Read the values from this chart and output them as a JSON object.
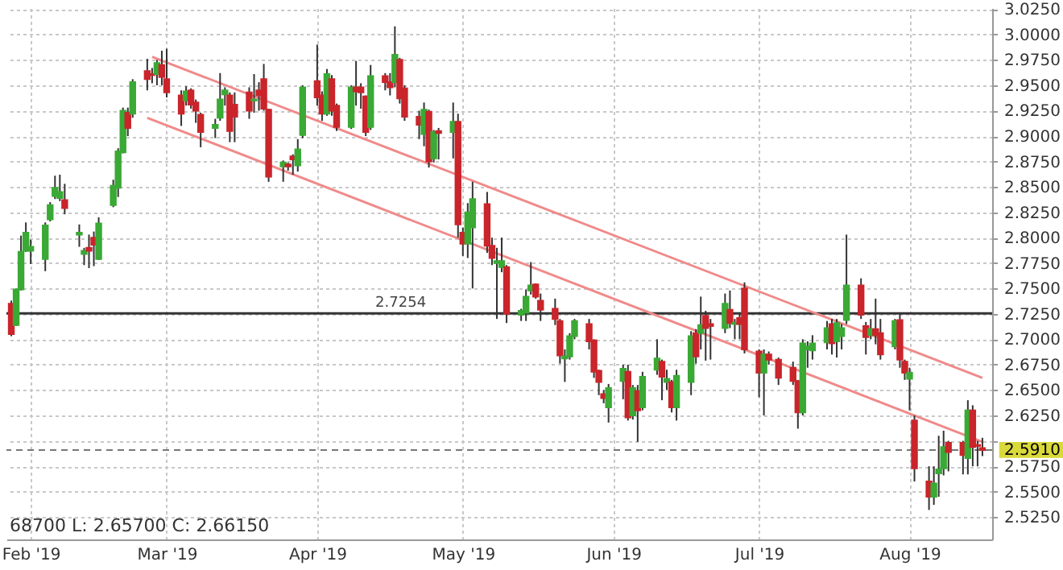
{
  "chart_data": {
    "type": "candlestick",
    "x": [
      "2019-01-28",
      "2019-01-29",
      "2019-01-30",
      "2019-01-31",
      "2019-02-01",
      "2019-02-04",
      "2019-02-05",
      "2019-02-06",
      "2019-02-07",
      "2019-02-08",
      "2019-02-11",
      "2019-02-12",
      "2019-02-13",
      "2019-02-14",
      "2019-02-15",
      "2019-02-18",
      "2019-02-19",
      "2019-02-20",
      "2019-02-21",
      "2019-02-22",
      "2019-02-25",
      "2019-02-26",
      "2019-02-27",
      "2019-02-28",
      "2019-03-01",
      "2019-03-04",
      "2019-03-05",
      "2019-03-06",
      "2019-03-07",
      "2019-03-08",
      "2019-03-11",
      "2019-03-12",
      "2019-03-13",
      "2019-03-14",
      "2019-03-15",
      "2019-03-18",
      "2019-03-19",
      "2019-03-20",
      "2019-03-21",
      "2019-03-22",
      "2019-03-25",
      "2019-03-26",
      "2019-03-27",
      "2019-03-28",
      "2019-03-29",
      "2019-04-01",
      "2019-04-02",
      "2019-04-03",
      "2019-04-04",
      "2019-04-05",
      "2019-04-08",
      "2019-04-09",
      "2019-04-10",
      "2019-04-11",
      "2019-04-12",
      "2019-04-15",
      "2019-04-16",
      "2019-04-17",
      "2019-04-18",
      "2019-04-19",
      "2019-04-22",
      "2019-04-23",
      "2019-04-24",
      "2019-04-25",
      "2019-04-26",
      "2019-04-29",
      "2019-04-30",
      "2019-05-01",
      "2019-05-02",
      "2019-05-03",
      "2019-05-06",
      "2019-05-07",
      "2019-05-08",
      "2019-05-09",
      "2019-05-10",
      "2019-05-13",
      "2019-05-14",
      "2019-05-15",
      "2019-05-16",
      "2019-05-17",
      "2019-05-20",
      "2019-05-21",
      "2019-05-22",
      "2019-05-23",
      "2019-05-24",
      "2019-05-27",
      "2019-05-28",
      "2019-05-29",
      "2019-05-30",
      "2019-05-31",
      "2019-06-03",
      "2019-06-04",
      "2019-06-05",
      "2019-06-06",
      "2019-06-07",
      "2019-06-10",
      "2019-06-11",
      "2019-06-12",
      "2019-06-13",
      "2019-06-14",
      "2019-06-17",
      "2019-06-18",
      "2019-06-19",
      "2019-06-20",
      "2019-06-21",
      "2019-06-24",
      "2019-06-25",
      "2019-06-26",
      "2019-06-27",
      "2019-06-28",
      "2019-07-01",
      "2019-07-02",
      "2019-07-03",
      "2019-07-05",
      "2019-07-08",
      "2019-07-09",
      "2019-07-10",
      "2019-07-11",
      "2019-07-12",
      "2019-07-15",
      "2019-07-16",
      "2019-07-17",
      "2019-07-18",
      "2019-07-19",
      "2019-07-22",
      "2019-07-23",
      "2019-07-24",
      "2019-07-25",
      "2019-07-26",
      "2019-07-29",
      "2019-07-30",
      "2019-07-31",
      "2019-08-01",
      "2019-08-02",
      "2019-08-05",
      "2019-08-06",
      "2019-08-07",
      "2019-08-08",
      "2019-08-09",
      "2019-08-12",
      "2019-08-13",
      "2019-08-14",
      "2019-08-15",
      "2019-08-16"
    ],
    "ohlc": [
      [
        2.735,
        2.738,
        2.703,
        2.705
      ],
      [
        2.714,
        2.75,
        2.713,
        2.749
      ],
      [
        2.749,
        2.802,
        2.748,
        2.786
      ],
      [
        2.787,
        2.815,
        2.786,
        2.805
      ],
      [
        2.787,
        2.798,
        2.774,
        2.791
      ],
      [
        2.779,
        2.815,
        2.767,
        2.812
      ],
      [
        2.818,
        2.835,
        2.816,
        2.832
      ],
      [
        2.841,
        2.861,
        2.838,
        2.849
      ],
      [
        2.839,
        2.862,
        2.836,
        2.845
      ],
      [
        2.837,
        2.853,
        2.823,
        2.829
      ],
      [
        2.803,
        2.813,
        2.791,
        2.805
      ],
      [
        2.784,
        2.79,
        2.773,
        2.787
      ],
      [
        2.79,
        2.803,
        2.77,
        2.787
      ],
      [
        2.8,
        2.806,
        2.772,
        2.793
      ],
      [
        2.779,
        2.82,
        2.778,
        2.814
      ],
      [
        2.832,
        2.857,
        2.83,
        2.851
      ],
      [
        2.849,
        2.888,
        2.84,
        2.885
      ],
      [
        2.884,
        2.928,
        2.883,
        2.925
      ],
      [
        2.923,
        2.928,
        2.9,
        2.908
      ],
      [
        2.922,
        2.956,
        2.918,
        2.953
      ],
      [
        2.964,
        2.976,
        2.945,
        2.956
      ],
      [
        2.961,
        2.967,
        2.952,
        2.96
      ],
      [
        2.961,
        2.975,
        2.95,
        2.972
      ],
      [
        2.97,
        2.984,
        2.95,
        2.958
      ],
      [
        2.956,
        2.986,
        2.938,
        2.943
      ],
      [
        2.94,
        2.945,
        2.91,
        2.922
      ],
      [
        2.935,
        2.949,
        2.93,
        2.944
      ],
      [
        2.945,
        2.947,
        2.927,
        2.931
      ],
      [
        2.933,
        2.936,
        2.913,
        2.925
      ],
      [
        2.921,
        2.923,
        2.889,
        2.904
      ],
      [
        2.908,
        2.917,
        2.898,
        2.911
      ],
      [
        2.918,
        2.962,
        2.915,
        2.936
      ],
      [
        2.941,
        2.948,
        2.93,
        2.945
      ],
      [
        2.94,
        2.943,
        2.894,
        2.905
      ],
      [
        2.931,
        2.943,
        2.894,
        2.919
      ],
      [
        2.943,
        2.948,
        2.917,
        2.925
      ],
      [
        2.935,
        2.961,
        2.923,
        2.936
      ],
      [
        2.945,
        2.953,
        2.925,
        2.94
      ],
      [
        2.956,
        2.971,
        2.925,
        2.927
      ],
      [
        2.926,
        2.927,
        2.855,
        2.86
      ],
      [
        2.87,
        2.876,
        2.855,
        2.874
      ],
      [
        2.872,
        2.874,
        2.866,
        2.87
      ],
      [
        2.88,
        2.882,
        2.862,
        2.877
      ],
      [
        2.871,
        2.897,
        2.865,
        2.887
      ],
      [
        2.901,
        2.95,
        2.898,
        2.948
      ],
      [
        2.954,
        2.99,
        2.93,
        2.938
      ],
      [
        2.94,
        2.944,
        2.915,
        2.922
      ],
      [
        2.922,
        2.966,
        2.92,
        2.961
      ],
      [
        2.956,
        2.96,
        2.92,
        2.925
      ],
      [
        2.93,
        2.932,
        2.905,
        2.909
      ],
      [
        2.909,
        2.95,
        2.907,
        2.948
      ],
      [
        2.948,
        2.974,
        2.93,
        2.944
      ],
      [
        2.948,
        2.952,
        2.927,
        2.943
      ],
      [
        2.939,
        2.94,
        2.9,
        2.904
      ],
      [
        2.909,
        2.97,
        2.906,
        2.959
      ],
      [
        2.959,
        2.962,
        2.945,
        2.953
      ],
      [
        2.953,
        2.962,
        2.94,
        2.948
      ],
      [
        2.953,
        3.008,
        2.948,
        2.98
      ],
      [
        2.975,
        2.977,
        2.932,
        2.937
      ],
      [
        2.947,
        2.95,
        2.915,
        2.919
      ],
      [
        2.919,
        2.925,
        2.897,
        2.911
      ],
      [
        2.902,
        2.933,
        2.89,
        2.926
      ],
      [
        2.924,
        2.926,
        2.869,
        2.875
      ],
      [
        2.878,
        2.906,
        2.874,
        2.904
      ],
      [
        2.905,
        2.908,
        2.877,
        2.903
      ],
      [
        2.904,
        2.933,
        2.878,
        2.914
      ],
      [
        2.914,
        2.922,
        2.8,
        2.813
      ],
      [
        2.805,
        2.81,
        2.782,
        2.794
      ],
      [
        2.794,
        2.834,
        2.78,
        2.825
      ],
      [
        2.81,
        2.855,
        2.75,
        2.838
      ],
      [
        2.833,
        2.845,
        2.785,
        2.792
      ],
      [
        2.792,
        2.8,
        2.773,
        2.78
      ],
      [
        2.775,
        2.79,
        2.72,
        2.777
      ],
      [
        2.771,
        2.8,
        2.766,
        2.777
      ],
      [
        2.771,
        2.773,
        2.716,
        2.725
      ],
      [
        2.724,
        2.73,
        2.718,
        2.728
      ],
      [
        2.726,
        2.749,
        2.718,
        2.742
      ],
      [
        2.748,
        2.776,
        2.744,
        2.753
      ],
      [
        2.754,
        2.755,
        2.74,
        2.742
      ],
      [
        2.738,
        2.745,
        2.718,
        2.729
      ],
      [
        2.73,
        2.74,
        2.714,
        2.72
      ],
      [
        2.718,
        2.72,
        2.676,
        2.684
      ],
      [
        2.681,
        2.69,
        2.658,
        2.683
      ],
      [
        2.683,
        2.706,
        2.68,
        2.703
      ],
      [
        2.703,
        2.72,
        2.7,
        2.718
      ],
      [
        2.715,
        2.72,
        2.69,
        2.698
      ],
      [
        2.699,
        2.7,
        2.662,
        2.668
      ],
      [
        2.669,
        2.67,
        2.645,
        2.658
      ],
      [
        2.646,
        2.65,
        2.637,
        2.642
      ],
      [
        2.633,
        2.656,
        2.618,
        2.652
      ],
      [
        2.659,
        2.675,
        2.641,
        2.671
      ],
      [
        2.668,
        2.675,
        2.62,
        2.623
      ],
      [
        2.625,
        2.655,
        2.621,
        2.652
      ],
      [
        2.649,
        2.655,
        2.599,
        2.63
      ],
      [
        2.633,
        2.668,
        2.63,
        2.663
      ],
      [
        2.67,
        2.7,
        2.665,
        2.681
      ],
      [
        2.678,
        2.68,
        2.64,
        2.663
      ],
      [
        2.658,
        2.67,
        2.65,
        2.661
      ],
      [
        2.658,
        2.66,
        2.628,
        2.633
      ],
      [
        2.633,
        2.67,
        2.62,
        2.664
      ],
      [
        2.658,
        2.708,
        2.645,
        2.703
      ],
      [
        2.706,
        2.71,
        2.676,
        2.683
      ],
      [
        2.706,
        2.742,
        2.69,
        2.714
      ],
      [
        2.723,
        2.728,
        2.679,
        2.711
      ],
      [
        2.715,
        2.72,
        2.68,
        2.713
      ],
      [
        2.711,
        2.745,
        2.706,
        2.735
      ],
      [
        2.729,
        2.748,
        2.711,
        2.716
      ],
      [
        2.715,
        2.72,
        2.7,
        2.716
      ],
      [
        2.721,
        2.725,
        2.7,
        2.715
      ],
      [
        2.75,
        2.756,
        2.686,
        2.69
      ],
      [
        2.688,
        2.69,
        2.643,
        2.667
      ],
      [
        2.667,
        2.69,
        2.625,
        2.685
      ],
      [
        2.685,
        2.688,
        2.675,
        2.68
      ],
      [
        2.68,
        2.682,
        2.655,
        2.662
      ],
      [
        2.672,
        2.678,
        2.655,
        2.659
      ],
      [
        2.659,
        2.66,
        2.612,
        2.628
      ],
      [
        2.628,
        2.7,
        2.625,
        2.696
      ],
      [
        2.69,
        2.698,
        2.672,
        2.693
      ],
      [
        2.689,
        2.704,
        2.68,
        2.696
      ],
      [
        2.697,
        2.718,
        2.69,
        2.711
      ],
      [
        2.715,
        2.72,
        2.685,
        2.696
      ],
      [
        2.698,
        2.72,
        2.682,
        2.716
      ],
      [
        2.703,
        2.715,
        2.69,
        2.711
      ],
      [
        2.719,
        2.803,
        2.715,
        2.753
      ],
      [
        2.753,
        2.76,
        2.72,
        2.724
      ],
      [
        2.713,
        2.717,
        2.685,
        2.702
      ],
      [
        2.704,
        2.72,
        2.7,
        2.71
      ],
      [
        2.71,
        2.74,
        2.695,
        2.704
      ],
      [
        2.706,
        2.72,
        2.68,
        2.685
      ],
      [
        2.693,
        2.72,
        2.69,
        2.718
      ],
      [
        2.719,
        2.725,
        2.672,
        2.68
      ],
      [
        2.678,
        2.68,
        2.66,
        2.667
      ],
      [
        2.661,
        2.672,
        2.63,
        2.667
      ],
      [
        2.62,
        2.625,
        2.56,
        2.573
      ],
      [
        2.56,
        2.575,
        2.532,
        2.545
      ],
      [
        2.545,
        2.575,
        2.537,
        2.558
      ],
      [
        2.568,
        2.605,
        2.545,
        2.572
      ],
      [
        2.573,
        2.61,
        2.566,
        2.594
      ],
      [
        2.598,
        2.6,
        2.57,
        2.589
      ],
      [
        2.598,
        2.6,
        2.567,
        2.586
      ],
      [
        2.583,
        2.64,
        2.567,
        2.63
      ],
      [
        2.63,
        2.635,
        2.575,
        2.594
      ],
      [
        2.596,
        2.6,
        2.575,
        2.595
      ],
      [
        2.593,
        2.603,
        2.585,
        2.591
      ]
    ],
    "series": [
      {
        "type": "line",
        "color": "#f08a8a",
        "x": [
          "2019-02-26",
          "2019-08-16"
        ],
        "values": [
          2.978,
          2.662
        ]
      },
      {
        "type": "line",
        "color": "#f08a8a",
        "x": [
          "2019-02-25",
          "2019-08-16"
        ],
        "values": [
          2.918,
          2.599
        ]
      }
    ],
    "ref_lines": [
      {
        "axis": "y",
        "value": 2.7254,
        "label": "2.7254",
        "color": "#333333",
        "line_style": "solid"
      },
      {
        "axis": "y",
        "value": 2.591,
        "label": "2.5910",
        "color": "#777777",
        "line_style": "dashed"
      }
    ],
    "annotations": [
      "68700  L: 2.65700  C: 2.66150"
    ],
    "xlim": [
      "2019-01-27",
      "2019-08-18"
    ],
    "xticks": [
      {
        "value": "2019-02-01",
        "label": "Feb '19"
      },
      {
        "value": "2019-03-01",
        "label": "Mar '19"
      },
      {
        "value": "2019-04-01",
        "label": "Apr '19"
      },
      {
        "value": "2019-05-01",
        "label": "May '19"
      },
      {
        "value": "2019-06-01",
        "label": "Jun '19"
      },
      {
        "value": "2019-07-01",
        "label": "Jul '19"
      },
      {
        "value": "2019-08-01",
        "label": "Aug '19"
      }
    ],
    "ylim": [
      2.503,
      3.026
    ],
    "yticks": [
      {
        "value": 2.525,
        "label": "2.5250"
      },
      {
        "value": 2.55,
        "label": "2.5500"
      },
      {
        "value": 2.575,
        "label": "2.5750"
      },
      {
        "value": 2.6,
        "label": null
      },
      {
        "value": 2.625,
        "label": "2.6250"
      },
      {
        "value": 2.65,
        "label": "2.6500"
      },
      {
        "value": 2.675,
        "label": "2.6750"
      },
      {
        "value": 2.7,
        "label": "2.7000"
      },
      {
        "value": 2.725,
        "label": "2.7250"
      },
      {
        "value": 2.75,
        "label": "2.7500"
      },
      {
        "value": 2.775,
        "label": "2.7750"
      },
      {
        "value": 2.8,
        "label": "2.8000"
      },
      {
        "value": 2.825,
        "label": "2.8250"
      },
      {
        "value": 2.85,
        "label": "2.8500"
      },
      {
        "value": 2.875,
        "label": "2.8750"
      },
      {
        "value": 2.9,
        "label": "2.9000"
      },
      {
        "value": 2.925,
        "label": "2.9250"
      },
      {
        "value": 2.95,
        "label": "2.9500"
      },
      {
        "value": 2.975,
        "label": "2.9750"
      },
      {
        "value": 3.0,
        "label": "3.0000"
      },
      {
        "value": 3.025,
        "label": "3.0250"
      }
    ],
    "grid": true
  }
}
